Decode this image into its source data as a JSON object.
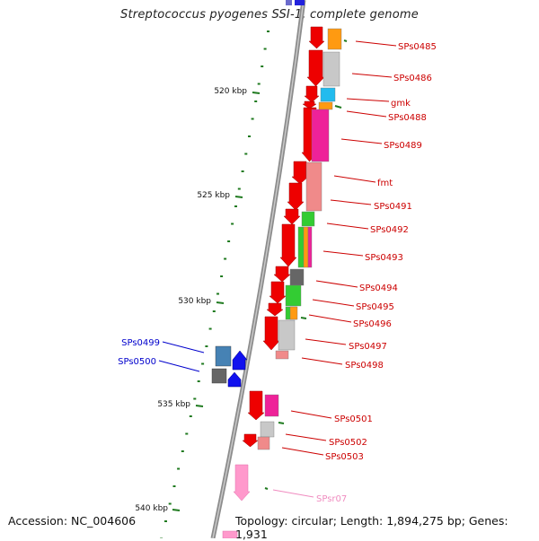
{
  "title": "Streptococcus pyogenes SSI-1, complete genome",
  "footer": {
    "accession": "Accession: NC_004606",
    "topology": "Topology: circular; Length: 1,894,275 bp; Genes: 1,931"
  },
  "scale": {
    "ticks": [
      {
        "label": "520 kbp",
        "kbp": 520
      },
      {
        "label": "525 kbp",
        "kbp": 525
      },
      {
        "label": "530 kbp",
        "kbp": 530
      },
      {
        "label": "535 kbp",
        "kbp": 535
      },
      {
        "label": "540 kbp",
        "kbp": 540
      }
    ]
  },
  "genes": [
    {
      "label": "SPs0485",
      "color": "#cc0000"
    },
    {
      "label": "SPs0486",
      "color": "#cc0000"
    },
    {
      "label": "gmk",
      "color": "#cc0000"
    },
    {
      "label": "SPs0488",
      "color": "#cc0000"
    },
    {
      "label": "SPs0489",
      "color": "#cc0000"
    },
    {
      "label": "fmt",
      "color": "#cc0000"
    },
    {
      "label": "SPs0491",
      "color": "#cc0000"
    },
    {
      "label": "SPs0492",
      "color": "#cc0000"
    },
    {
      "label": "SPs0493",
      "color": "#cc0000"
    },
    {
      "label": "SPs0494",
      "color": "#cc0000"
    },
    {
      "label": "SPs0495",
      "color": "#cc0000"
    },
    {
      "label": "SPs0496",
      "color": "#cc0000"
    },
    {
      "label": "SPs0497",
      "color": "#cc0000"
    },
    {
      "label": "SPs0498",
      "color": "#cc0000"
    },
    {
      "label": "SPs0501",
      "color": "#cc0000"
    },
    {
      "label": "SPs0502",
      "color": "#cc0000"
    },
    {
      "label": "SPs0503",
      "color": "#cc0000"
    },
    {
      "label": "SPsr07",
      "color": "#f08cc0"
    },
    {
      "label": "SPs0499",
      "color": "#0000cc"
    },
    {
      "label": "SPs0500",
      "color": "#0000cc"
    }
  ],
  "colors": {
    "backbone": "#8c8c8c",
    "strand_forward": "#ee0000",
    "strand_reverse": "#0000ee",
    "tick": "#1f7a1f",
    "rna": "#ff99cc"
  }
}
